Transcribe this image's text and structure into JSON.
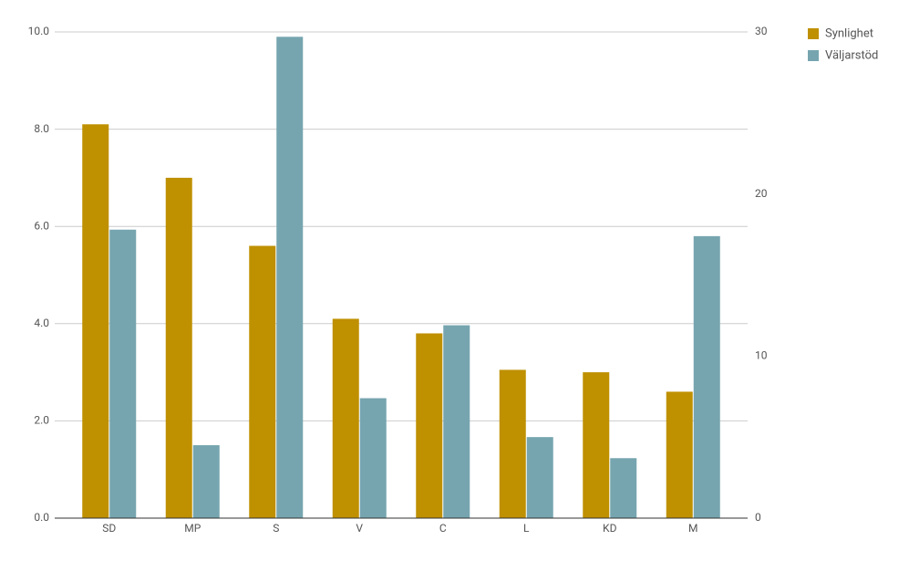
{
  "chart_data": {
    "type": "bar",
    "categories": [
      "SD",
      "MP",
      "S",
      "V",
      "C",
      "L",
      "KD",
      "M"
    ],
    "series": [
      {
        "name": "Synlighet",
        "color": "#bf9000",
        "values": [
          8.1,
          7.0,
          5.6,
          4.1,
          3.8,
          3.05,
          3.0,
          2.6
        ]
      },
      {
        "name": "Väljarstöd",
        "color": "#76a5af",
        "axis": "y2",
        "values": [
          17.8,
          4.5,
          29.7,
          7.4,
          11.9,
          5.0,
          3.7,
          17.4
        ]
      }
    ],
    "ylim": [
      0,
      10
    ],
    "yticks": [
      {
        "value": 0,
        "label": "0.0"
      },
      {
        "value": 2,
        "label": "2.0"
      },
      {
        "value": 4,
        "label": "4.0"
      },
      {
        "value": 6,
        "label": "6.0"
      },
      {
        "value": 8,
        "label": "8.0"
      },
      {
        "value": 10,
        "label": "10.0"
      }
    ],
    "y2lim": [
      0,
      30
    ],
    "y2ticks": [
      0,
      10,
      20,
      30
    ],
    "grid": true
  }
}
